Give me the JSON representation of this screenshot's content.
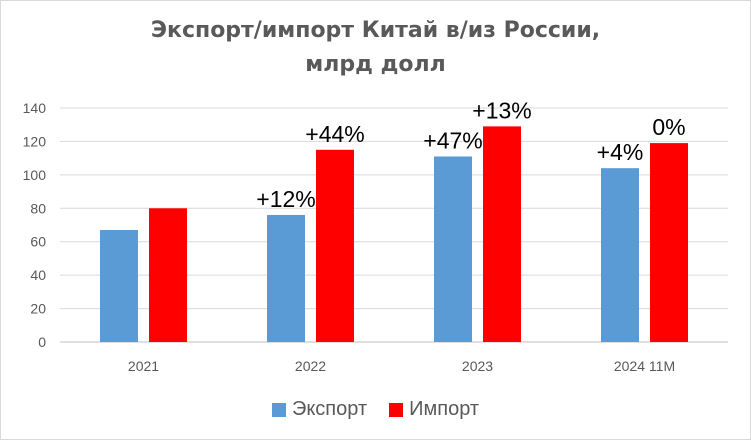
{
  "chart_data": {
    "type": "bar",
    "title": [
      "Экспорт/импорт Китай в/из России,",
      "млрд долл"
    ],
    "categories": [
      "2021",
      "2022",
      "2023",
      "2024 11M"
    ],
    "ylim": [
      0,
      140
    ],
    "yticks": [
      0,
      20,
      40,
      60,
      80,
      100,
      120,
      140
    ],
    "grid": true,
    "legend_position": "bottom",
    "series": [
      {
        "name": "Экспорт",
        "color": "#5b9bd5",
        "values": [
          67,
          76,
          111,
          104
        ],
        "labels": [
          "",
          "+12%",
          "+47%",
          "+4%"
        ]
      },
      {
        "name": "Импорт",
        "color": "#ff0000",
        "values": [
          80,
          115,
          129,
          119
        ],
        "labels": [
          "",
          "+44%",
          "+13%",
          "0%"
        ]
      }
    ]
  }
}
